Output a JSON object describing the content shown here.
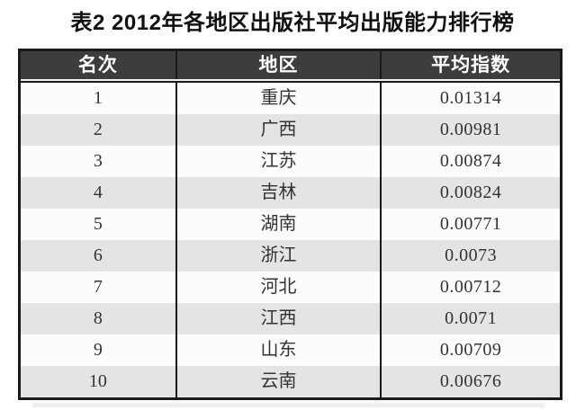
{
  "title": "表2 2012年各地区出版社平均出版能力排行榜",
  "table": {
    "columns": [
      {
        "key": "rank",
        "label": "名次"
      },
      {
        "key": "region",
        "label": "地区"
      },
      {
        "key": "index",
        "label": "平均指数"
      }
    ],
    "rows": [
      {
        "rank": "1",
        "region": "重庆",
        "index": "0.01314"
      },
      {
        "rank": "2",
        "region": "广西",
        "index": "0.00981"
      },
      {
        "rank": "3",
        "region": "江苏",
        "index": "0.00874"
      },
      {
        "rank": "4",
        "region": "吉林",
        "index": "0.00824"
      },
      {
        "rank": "5",
        "region": "湖南",
        "index": "0.00771"
      },
      {
        "rank": "6",
        "region": "浙江",
        "index": "0.0073"
      },
      {
        "rank": "7",
        "region": "河北",
        "index": "0.00712"
      },
      {
        "rank": "8",
        "region": "江西",
        "index": "0.0071"
      },
      {
        "rank": "9",
        "region": "山东",
        "index": "0.00709"
      },
      {
        "rank": "10",
        "region": "云南",
        "index": "0.00676"
      }
    ]
  },
  "colors": {
    "header_bg": "#3d3d3d",
    "header_text": "#ffffff",
    "row_bg": "#fcfcfc",
    "row_alt_bg": "#e4e4e4",
    "border": "#1a1a1a",
    "body_text": "#333333",
    "title_text": "#111111"
  }
}
